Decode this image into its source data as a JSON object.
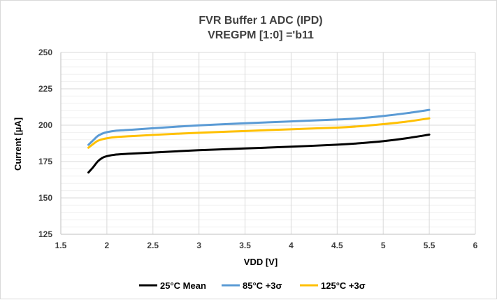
{
  "chart_data": {
    "type": "line",
    "title": "FVR Buffer 1 ADC (IPD)",
    "subtitle": "VREGPM [1:0] ='b11",
    "xlabel": "VDD [V]",
    "ylabel": "Current [µA]",
    "xlim": [
      1.5,
      6
    ],
    "ylim": [
      125,
      250
    ],
    "xticks": [
      "1.5",
      "2",
      "2.5",
      "3",
      "3.5",
      "4",
      "4.5",
      "5",
      "5.5",
      "6"
    ],
    "yticks": [
      "125",
      "150",
      "175",
      "200",
      "225",
      "250"
    ],
    "grid": true,
    "legend_position": "bottom",
    "series": [
      {
        "name": "25°C Mean",
        "color": "#000000",
        "x": [
          1.8,
          1.85,
          1.9,
          1.95,
          2.0,
          2.1,
          2.25,
          2.5,
          3.0,
          3.5,
          4.0,
          4.5,
          4.75,
          5.0,
          5.25,
          5.5
        ],
        "y": [
          167.5,
          171.0,
          175.0,
          177.5,
          178.7,
          179.8,
          180.4,
          181.2,
          182.8,
          184.0,
          185.2,
          186.6,
          187.6,
          189.0,
          191.0,
          193.5
        ]
      },
      {
        "name": "85°C +3σ",
        "color": "#5b9bd5",
        "x": [
          1.8,
          1.85,
          1.9,
          1.95,
          2.0,
          2.1,
          2.25,
          2.5,
          3.0,
          3.5,
          4.0,
          4.5,
          4.75,
          5.0,
          5.25,
          5.5
        ],
        "y": [
          186.5,
          189.5,
          192.5,
          194.2,
          195.2,
          196.2,
          196.8,
          197.9,
          199.9,
          201.3,
          202.6,
          203.9,
          204.8,
          206.3,
          208.2,
          210.5
        ]
      },
      {
        "name": "125°C +3σ",
        "color": "#ffc000",
        "x": [
          1.8,
          1.85,
          1.9,
          1.95,
          2.0,
          2.1,
          2.25,
          2.5,
          3.0,
          3.5,
          4.0,
          4.5,
          4.75,
          5.0,
          5.25,
          5.5
        ],
        "y": [
          184.5,
          187.0,
          189.2,
          190.3,
          191.0,
          191.8,
          192.4,
          193.3,
          194.8,
          196.0,
          197.2,
          198.3,
          199.3,
          200.7,
          202.4,
          204.7
        ]
      }
    ]
  }
}
